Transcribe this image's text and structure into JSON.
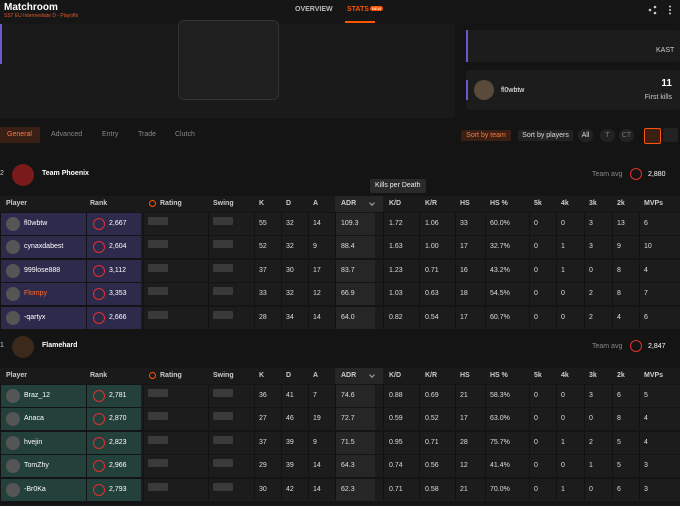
{
  "header": {
    "title": "Matchroom",
    "subtitle": "SS7 EU Intermediate D - Playoffs"
  },
  "nav": [
    "OVERVIEW",
    "STATS"
  ],
  "nav_badge": "NEW",
  "highlight": {
    "kast_label": "KAST",
    "player": "fl0wbtw",
    "first_kills": "11",
    "first_kills_label": "First kills"
  },
  "tabs": [
    "General",
    "Advanced",
    "Entry",
    "Trade",
    "Clutch"
  ],
  "sort_buttons": [
    "Sort by team",
    "Sort by players"
  ],
  "side_filters": [
    "All",
    "T",
    "CT"
  ],
  "tooltip": "Kills per Death",
  "columns": [
    "Player",
    "Rank",
    "Rating",
    "Swing",
    "K",
    "D",
    "A",
    "ADR",
    "K/D",
    "K/R",
    "HS",
    "HS %",
    "5k",
    "4k",
    "3k",
    "2k",
    "MVPs"
  ],
  "teams": [
    {
      "score": "2",
      "name": "Team Phoenix",
      "avg_label": "Team avg",
      "avg_elo": "2,880",
      "players": [
        {
          "name": "fl0wbtw",
          "elo": "2,667",
          "stats": [
            "55",
            "32",
            "14",
            "109.3",
            "1.72",
            "1.06",
            "33",
            "60.0%",
            "0",
            "0",
            "3",
            "13",
            "6"
          ]
        },
        {
          "name": "cynaxdabest",
          "elo": "2,604",
          "stats": [
            "52",
            "32",
            "9",
            "88.4",
            "1.63",
            "1.00",
            "17",
            "32.7%",
            "0",
            "1",
            "3",
            "9",
            "10"
          ]
        },
        {
          "name": "999lose888",
          "elo": "3,112",
          "stats": [
            "37",
            "30",
            "17",
            "83.7",
            "1.23",
            "0.71",
            "16",
            "43.2%",
            "0",
            "1",
            "0",
            "8",
            "4"
          ]
        },
        {
          "name": "Flompy",
          "elo": "3,353",
          "stats": [
            "33",
            "32",
            "12",
            "66.9",
            "1.03",
            "0.63",
            "18",
            "54.5%",
            "0",
            "0",
            "2",
            "8",
            "7"
          ]
        },
        {
          "name": "-qartyx",
          "elo": "2,666",
          "stats": [
            "28",
            "34",
            "14",
            "64.0",
            "0.82",
            "0.54",
            "17",
            "60.7%",
            "0",
            "0",
            "2",
            "4",
            "6"
          ]
        }
      ]
    },
    {
      "score": "1",
      "name": "Flamehard",
      "avg_label": "Team avg",
      "avg_elo": "2,847",
      "players": [
        {
          "name": "Braz_12",
          "elo": "2,781",
          "stats": [
            "36",
            "41",
            "7",
            "74.6",
            "0.88",
            "0.69",
            "21",
            "58.3%",
            "0",
            "0",
            "3",
            "6",
            "5"
          ]
        },
        {
          "name": "Anaca",
          "elo": "2,870",
          "stats": [
            "27",
            "46",
            "19",
            "72.7",
            "0.59",
            "0.52",
            "17",
            "63.0%",
            "0",
            "0",
            "0",
            "8",
            "4"
          ]
        },
        {
          "name": "hvejin",
          "elo": "2,823",
          "stats": [
            "37",
            "39",
            "9",
            "71.5",
            "0.95",
            "0.71",
            "28",
            "75.7%",
            "0",
            "1",
            "2",
            "5",
            "4"
          ]
        },
        {
          "name": "TomZhy",
          "elo": "2,966",
          "stats": [
            "29",
            "39",
            "14",
            "64.3",
            "0.74",
            "0.56",
            "12",
            "41.4%",
            "0",
            "0",
            "1",
            "5",
            "3"
          ]
        },
        {
          "name": "-Br0Ka",
          "elo": "2,793",
          "stats": [
            "30",
            "42",
            "14",
            "62.3",
            "0.71",
            "0.58",
            "21",
            "70.0%",
            "0",
            "1",
            "0",
            "6",
            "3"
          ]
        }
      ]
    }
  ]
}
